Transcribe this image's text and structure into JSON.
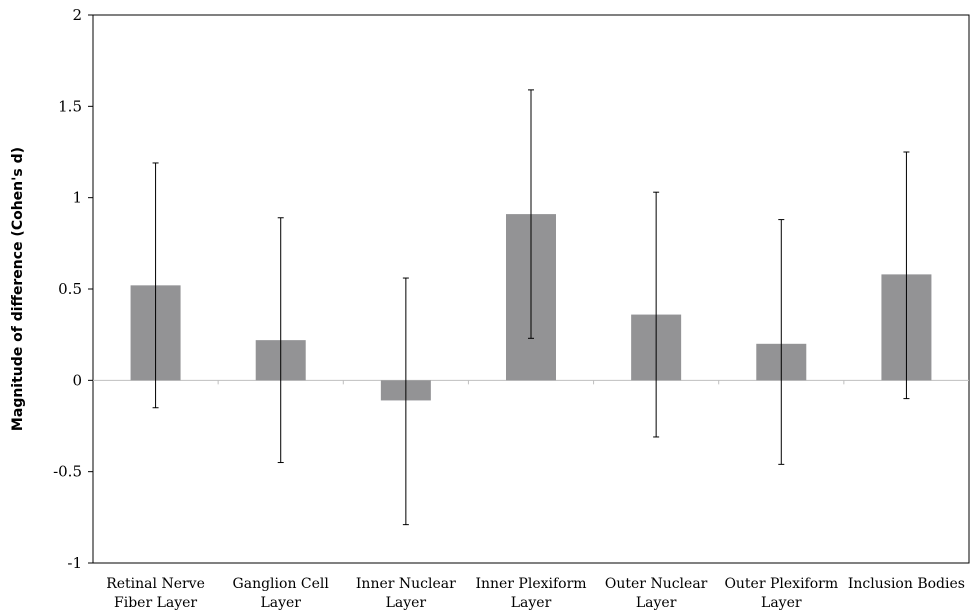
{
  "chart_data": {
    "type": "bar",
    "title": "",
    "xlabel": "",
    "ylabel": "Magnitude of difference (Cohen's d)",
    "ylim": [
      -1,
      2
    ],
    "yticks": [
      -1,
      -0.5,
      0,
      0.5,
      1,
      1.5,
      2
    ],
    "ytick_labels": [
      "-1",
      "-0.5",
      "0",
      "0.5",
      "1",
      "1.5",
      "2"
    ],
    "categories": [
      [
        "Retinal Nerve",
        "Fiber Layer"
      ],
      [
        "Ganglion Cell",
        "Layer"
      ],
      [
        "Inner Nuclear",
        "Layer"
      ],
      [
        "Inner Plexiform",
        "Layer"
      ],
      [
        "Outer Nuclear",
        "Layer"
      ],
      [
        "Outer Plexiform",
        "Layer"
      ],
      [
        "Inclusion Bodies"
      ]
    ],
    "values": [
      0.52,
      0.22,
      -0.11,
      0.91,
      0.36,
      0.2,
      0.58
    ],
    "error_low": [
      -0.15,
      -0.45,
      -0.79,
      0.23,
      -0.31,
      -0.46,
      -0.1
    ],
    "error_high": [
      1.19,
      0.89,
      0.56,
      1.59,
      1.03,
      0.88,
      1.25
    ],
    "grid": false,
    "legend": "none",
    "colors": {
      "bar": "#939395",
      "axis": "#000000",
      "zero_line": "#bfbfbf",
      "error_bar": "#000000"
    }
  }
}
